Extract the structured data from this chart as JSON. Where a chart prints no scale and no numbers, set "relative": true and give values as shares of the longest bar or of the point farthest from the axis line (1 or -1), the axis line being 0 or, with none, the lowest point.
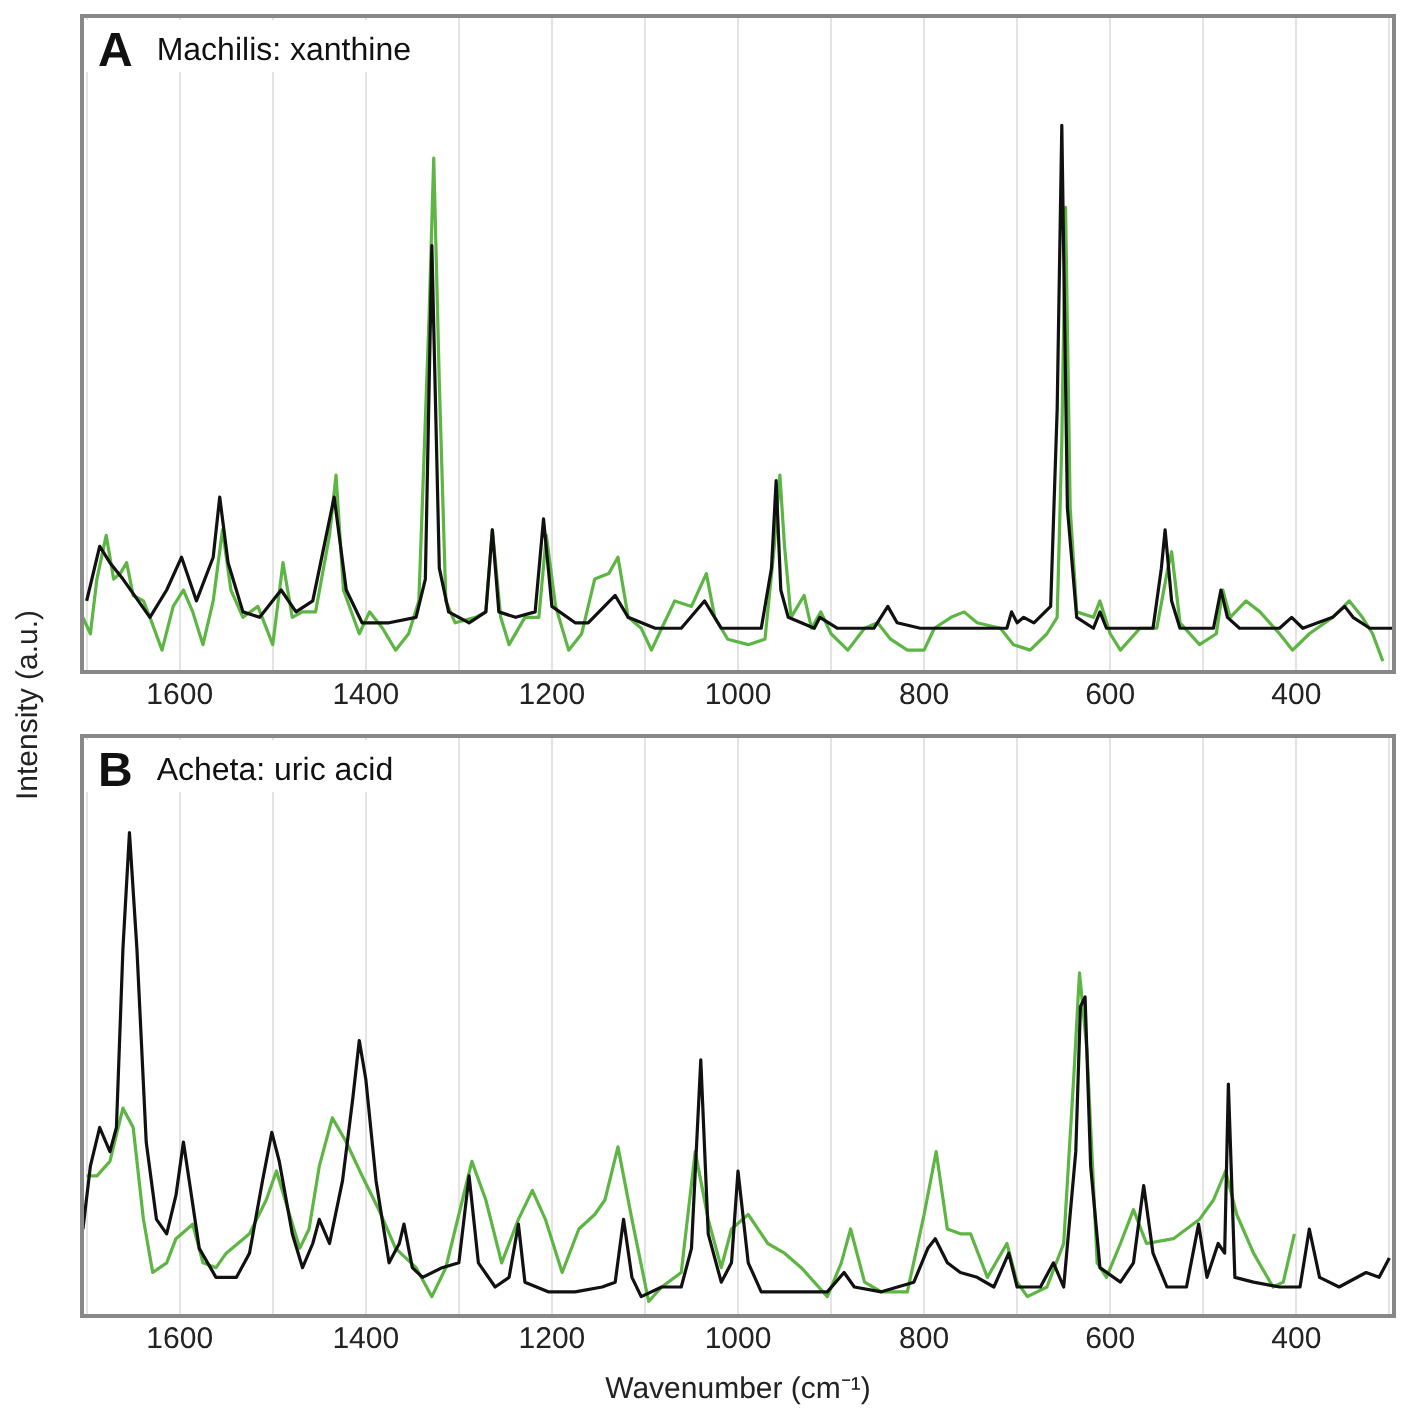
{
  "chart_data": [
    {
      "type": "line",
      "title": "A",
      "subtitle": "Machilis: xanthine",
      "ylabel": "Intensity (a.u.)",
      "relative": true,
      "grid": "x",
      "xlim": [
        1705,
        295
      ],
      "xticks": [
        {
          "value": 1700,
          "label": null
        },
        1600,
        {
          "value": 1500,
          "label": null
        },
        1400,
        {
          "value": 1300,
          "label": null
        },
        1200,
        {
          "value": 1100,
          "label": null
        },
        1000,
        {
          "value": 900,
          "label": null
        },
        800,
        {
          "value": 700,
          "label": null
        },
        600,
        {
          "value": 500,
          "label": null
        },
        400,
        {
          "value": 300,
          "label": null
        }
      ],
      "series": [
        {
          "color": "#111111",
          "x": [
            1700,
            1686,
            1675,
            1661,
            1632,
            1614,
            1598,
            1582,
            1564,
            1557,
            1548,
            1532,
            1514,
            1491,
            1475,
            1457,
            1434,
            1421,
            1404,
            1375,
            1346,
            1336,
            1329,
            1321,
            1311,
            1289,
            1271,
            1264,
            1257,
            1239,
            1218,
            1209,
            1200,
            1175,
            1161,
            1132,
            1118,
            1089,
            1061,
            1036,
            1018,
            996,
            975,
            964,
            959,
            954,
            946,
            918,
            912,
            893,
            854,
            839,
            829,
            804,
            732,
            711,
            706,
            700,
            693,
            682,
            664,
            657,
            652,
            646,
            636,
            618,
            611,
            604,
            554,
            545,
            541,
            534,
            525,
            489,
            481,
            474,
            461,
            418,
            405,
            393,
            361,
            348,
            339,
            321,
            297
          ],
          "values": [
            0.13,
            0.23,
            0.2,
            0.17,
            0.1,
            0.15,
            0.21,
            0.13,
            0.21,
            0.32,
            0.2,
            0.11,
            0.1,
            0.15,
            0.11,
            0.13,
            0.32,
            0.15,
            0.09,
            0.09,
            0.1,
            0.17,
            0.78,
            0.19,
            0.11,
            0.09,
            0.11,
            0.26,
            0.11,
            0.1,
            0.11,
            0.28,
            0.12,
            0.09,
            0.09,
            0.14,
            0.1,
            0.08,
            0.08,
            0.13,
            0.08,
            0.08,
            0.08,
            0.19,
            0.35,
            0.15,
            0.1,
            0.08,
            0.1,
            0.08,
            0.08,
            0.12,
            0.09,
            0.08,
            0.08,
            0.08,
            0.11,
            0.09,
            0.1,
            0.09,
            0.12,
            0.48,
            1,
            0.3,
            0.1,
            0.08,
            0.11,
            0.08,
            0.08,
            0.19,
            0.26,
            0.13,
            0.08,
            0.08,
            0.15,
            0.1,
            0.08,
            0.08,
            0.1,
            0.08,
            0.1,
            0.12,
            0.1,
            0.08,
            0.08
          ]
        },
        {
          "color": "#5db544",
          "x": [
            1704,
            1696,
            1689,
            1679,
            1671,
            1664,
            1657,
            1650,
            1639,
            1632,
            1619,
            1607,
            1596,
            1586,
            1575,
            1564,
            1554,
            1545,
            1532,
            1516,
            1500,
            1489,
            1479,
            1468,
            1454,
            1439,
            1432,
            1424,
            1407,
            1396,
            1382,
            1368,
            1354,
            1343,
            1332,
            1327,
            1321,
            1314,
            1304,
            1282,
            1271,
            1264,
            1255,
            1246,
            1229,
            1214,
            1206,
            1196,
            1182,
            1168,
            1154,
            1139,
            1129,
            1118,
            1104,
            1093,
            1082,
            1068,
            1050,
            1034,
            1025,
            1011,
            989,
            971,
            961,
            955,
            950,
            943,
            929,
            921,
            911,
            900,
            882,
            864,
            850,
            836,
            818,
            800,
            789,
            771,
            757,
            743,
            718,
            704,
            686,
            668,
            657,
            652,
            648,
            643,
            636,
            618,
            611,
            600,
            589,
            568,
            550,
            538,
            534,
            525,
            504,
            486,
            479,
            471,
            454,
            439,
            418,
            404,
            386,
            361,
            343,
            329,
            318,
            307
          ],
          "values": [
            0.1,
            0.07,
            0.17,
            0.25,
            0.17,
            0.18,
            0.2,
            0.14,
            0.13,
            0.1,
            0.04,
            0.12,
            0.15,
            0.11,
            0.05,
            0.13,
            0.26,
            0.15,
            0.1,
            0.12,
            0.05,
            0.2,
            0.1,
            0.11,
            0.11,
            0.25,
            0.36,
            0.15,
            0.07,
            0.11,
            0.08,
            0.04,
            0.07,
            0.13,
            0.65,
            0.94,
            0.53,
            0.13,
            0.09,
            0.1,
            0.11,
            0.26,
            0.1,
            0.05,
            0.1,
            0.1,
            0.25,
            0.12,
            0.04,
            0.07,
            0.17,
            0.18,
            0.21,
            0.1,
            0.08,
            0.04,
            0.08,
            0.13,
            0.12,
            0.18,
            0.1,
            0.06,
            0.05,
            0.06,
            0.23,
            0.36,
            0.23,
            0.1,
            0.14,
            0.08,
            0.11,
            0.07,
            0.04,
            0.08,
            0.09,
            0.06,
            0.04,
            0.04,
            0.08,
            0.1,
            0.11,
            0.09,
            0.08,
            0.05,
            0.04,
            0.07,
            0.1,
            0.42,
            0.85,
            0.3,
            0.11,
            0.1,
            0.13,
            0.07,
            0.04,
            0.08,
            0.08,
            0.19,
            0.22,
            0.09,
            0.05,
            0.07,
            0.15,
            0.1,
            0.13,
            0.11,
            0.07,
            0.04,
            0.07,
            0.1,
            0.13,
            0.1,
            0.07,
            0.02
          ]
        }
      ]
    },
    {
      "type": "line",
      "title": "B",
      "subtitle": "Acheta: uric acid",
      "xlabel": "Wavenumber (cm⁻¹)",
      "relative": true,
      "grid": "x",
      "xlim": [
        1705,
        295
      ],
      "xticks": [
        {
          "value": 1700,
          "label": null
        },
        1600,
        {
          "value": 1500,
          "label": null
        },
        1400,
        {
          "value": 1300,
          "label": null
        },
        1200,
        {
          "value": 1100,
          "label": null
        },
        1000,
        {
          "value": 900,
          "label": null
        },
        800,
        {
          "value": 700,
          "label": null
        },
        600,
        {
          "value": 500,
          "label": null
        },
        400,
        {
          "value": 300,
          "label": null
        }
      ],
      "series": [
        {
          "color": "#111111",
          "x": [
            1704,
            1696,
            1686,
            1675,
            1668,
            1661,
            1654,
            1646,
            1636,
            1625,
            1614,
            1604,
            1596,
            1589,
            1579,
            1561,
            1539,
            1525,
            1511,
            1501,
            1493,
            1479,
            1468,
            1457,
            1450,
            1439,
            1425,
            1414,
            1407,
            1400,
            1389,
            1375,
            1364,
            1359,
            1350,
            1339,
            1318,
            1300,
            1289,
            1279,
            1261,
            1246,
            1236,
            1229,
            1204,
            1175,
            1146,
            1132,
            1123,
            1114,
            1104,
            1082,
            1061,
            1050,
            1040,
            1032,
            1018,
            1007,
            1000,
            989,
            975,
            932,
            904,
            886,
            875,
            846,
            811,
            796,
            788,
            775,
            761,
            743,
            725,
            709,
            700,
            675,
            661,
            650,
            637,
            632,
            627,
            621,
            611,
            589,
            575,
            564,
            554,
            539,
            518,
            505,
            496,
            484,
            477,
            473,
            466,
            446,
            418,
            396,
            386,
            375,
            354,
            325,
            311,
            300
          ],
          "values": [
            0.18,
            0.31,
            0.39,
            0.34,
            0.39,
            0.76,
            1,
            0.76,
            0.36,
            0.2,
            0.17,
            0.25,
            0.36,
            0.27,
            0.14,
            0.08,
            0.08,
            0.13,
            0.28,
            0.38,
            0.32,
            0.17,
            0.1,
            0.15,
            0.2,
            0.15,
            0.28,
            0.45,
            0.57,
            0.49,
            0.28,
            0.11,
            0.15,
            0.19,
            0.1,
            0.08,
            0.1,
            0.11,
            0.29,
            0.11,
            0.06,
            0.08,
            0.19,
            0.07,
            0.05,
            0.05,
            0.06,
            0.07,
            0.2,
            0.08,
            0.04,
            0.06,
            0.06,
            0.14,
            0.53,
            0.17,
            0.07,
            0.11,
            0.3,
            0.11,
            0.05,
            0.05,
            0.05,
            0.09,
            0.06,
            0.05,
            0.07,
            0.14,
            0.16,
            0.11,
            0.09,
            0.08,
            0.06,
            0.13,
            0.06,
            0.06,
            0.11,
            0.06,
            0.34,
            0.64,
            0.66,
            0.31,
            0.1,
            0.07,
            0.11,
            0.27,
            0.13,
            0.06,
            0.06,
            0.19,
            0.08,
            0.15,
            0.13,
            0.48,
            0.08,
            0.07,
            0.06,
            0.06,
            0.18,
            0.08,
            0.06,
            0.09,
            0.08,
            0.12
          ]
        },
        {
          "color": "#5db544",
          "x": [
            1700,
            1689,
            1675,
            1661,
            1650,
            1639,
            1629,
            1614,
            1604,
            1586,
            1575,
            1561,
            1550,
            1525,
            1507,
            1496,
            1482,
            1471,
            1461,
            1450,
            1436,
            1421,
            1404,
            1386,
            1368,
            1346,
            1329,
            1314,
            1300,
            1286,
            1271,
            1254,
            1236,
            1221,
            1207,
            1189,
            1171,
            1154,
            1143,
            1129,
            1114,
            1096,
            1082,
            1061,
            1046,
            1032,
            1018,
            1007,
            989,
            968,
            950,
            932,
            904,
            889,
            879,
            864,
            846,
            818,
            800,
            787,
            775,
            761,
            750,
            732,
            711,
            700,
            689,
            668,
            650,
            639,
            633,
            625,
            614,
            604,
            589,
            575,
            561,
            532,
            504,
            489,
            476,
            464,
            446,
            425,
            414,
            402
          ],
          "values": [
            0.29,
            0.29,
            0.32,
            0.43,
            0.39,
            0.2,
            0.09,
            0.11,
            0.16,
            0.19,
            0.11,
            0.1,
            0.13,
            0.17,
            0.24,
            0.3,
            0.21,
            0.14,
            0.18,
            0.31,
            0.41,
            0.36,
            0.29,
            0.22,
            0.14,
            0.1,
            0.04,
            0.1,
            0.21,
            0.32,
            0.24,
            0.11,
            0.2,
            0.26,
            0.2,
            0.09,
            0.18,
            0.21,
            0.24,
            0.35,
            0.2,
            0.03,
            0.06,
            0.09,
            0.34,
            0.2,
            0.1,
            0.18,
            0.21,
            0.15,
            0.13,
            0.1,
            0.04,
            0.11,
            0.18,
            0.07,
            0.05,
            0.05,
            0.21,
            0.34,
            0.18,
            0.17,
            0.17,
            0.08,
            0.15,
            0.07,
            0.04,
            0.06,
            0.15,
            0.5,
            0.71,
            0.55,
            0.11,
            0.08,
            0.15,
            0.22,
            0.15,
            0.16,
            0.2,
            0.24,
            0.3,
            0.21,
            0.13,
            0.06,
            0.07,
            0.17
          ]
        }
      ]
    }
  ]
}
